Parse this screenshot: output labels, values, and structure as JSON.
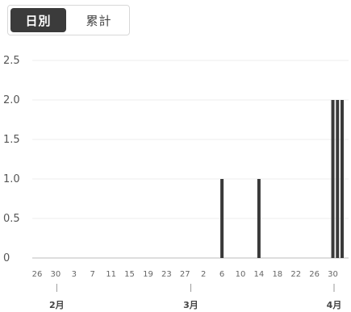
{
  "tabs": [
    {
      "label": "日別",
      "active": true
    },
    {
      "label": "累計",
      "active": false
    }
  ],
  "chart_data": {
    "type": "bar",
    "title": "",
    "xlabel": "",
    "ylabel": "",
    "ylim": [
      0,
      2.5
    ],
    "y_ticks": [
      "0",
      "0.5",
      "1.0",
      "1.5",
      "2.0",
      "2.5"
    ],
    "y_tick_values": [
      0,
      0.5,
      1.0,
      1.5,
      2.0,
      2.5
    ],
    "grid": true,
    "x_tick_labels": [
      "26",
      "30",
      "3",
      "7",
      "11",
      "15",
      "19",
      "23",
      "27",
      "2",
      "6",
      "10",
      "14",
      "18",
      "22",
      "26",
      "30"
    ],
    "month_labels": [
      "2月",
      "3月",
      "4月"
    ],
    "month_start_dates": [
      "02-01",
      "03-01",
      "04-01"
    ],
    "date_range": [
      "01-26",
      "04-01"
    ],
    "bars": [
      {
        "date": "03-06",
        "value": 1
      },
      {
        "date": "03-14",
        "value": 1
      },
      {
        "date": "03-30",
        "value": 2
      },
      {
        "date": "03-31",
        "value": 2
      },
      {
        "date": "04-01",
        "value": 2
      }
    ],
    "colors": {
      "bar": "#3a3a3a",
      "grid": "#ececec",
      "axis": "#bbbbbb"
    }
  }
}
